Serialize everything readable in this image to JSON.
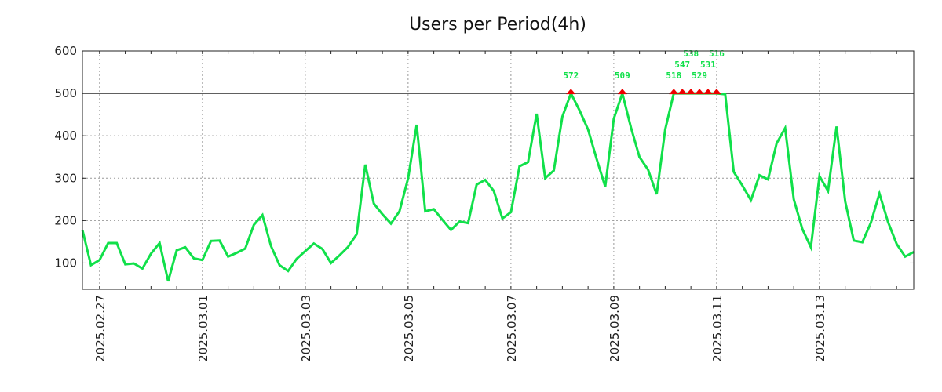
{
  "chart_data": {
    "type": "line",
    "title": "Users per Period(4h)",
    "xlabel": "",
    "ylabel": "",
    "start": "2025-02-26 16:00",
    "interval_hours": 4,
    "ylim": [
      38,
      600
    ],
    "yticks": [
      100,
      200,
      300,
      400,
      500,
      600
    ],
    "xtick_labels": [
      "2025.02.27",
      "2025.03.01",
      "2025.03.03",
      "2025.03.05",
      "2025.03.07",
      "2025.03.09",
      "2025.03.11",
      "2025.03.13"
    ],
    "threshold": 500,
    "grid": true,
    "series": [
      {
        "name": "Users",
        "color": "#11e04a",
        "values": [
          178,
          95,
          107,
          147,
          147,
          97,
          99,
          87,
          122,
          147,
          57,
          130,
          137,
          111,
          107,
          152,
          153,
          115,
          124,
          134,
          190,
          213,
          140,
          95,
          81,
          110,
          128,
          146,
          133,
          100,
          118,
          138,
          168,
          332,
          240,
          215,
          193,
          222,
          300,
          426,
          222,
          227,
          202,
          178,
          198,
          194,
          285,
          296,
          270,
          205,
          220,
          328,
          338,
          452,
          300,
          318,
          445,
          572,
          460,
          415,
          345,
          280,
          440,
          509,
          420,
          350,
          320,
          262,
          415,
          518,
          547,
          538,
          529,
          531,
          516,
          498,
          315,
          283,
          248,
          307,
          297,
          382,
          418,
          250,
          180,
          137,
          305,
          270,
          422,
          245,
          153,
          149,
          195,
          264,
          197,
          145,
          115,
          126
        ]
      }
    ],
    "overflow_marker_color": "#ee0000"
  }
}
